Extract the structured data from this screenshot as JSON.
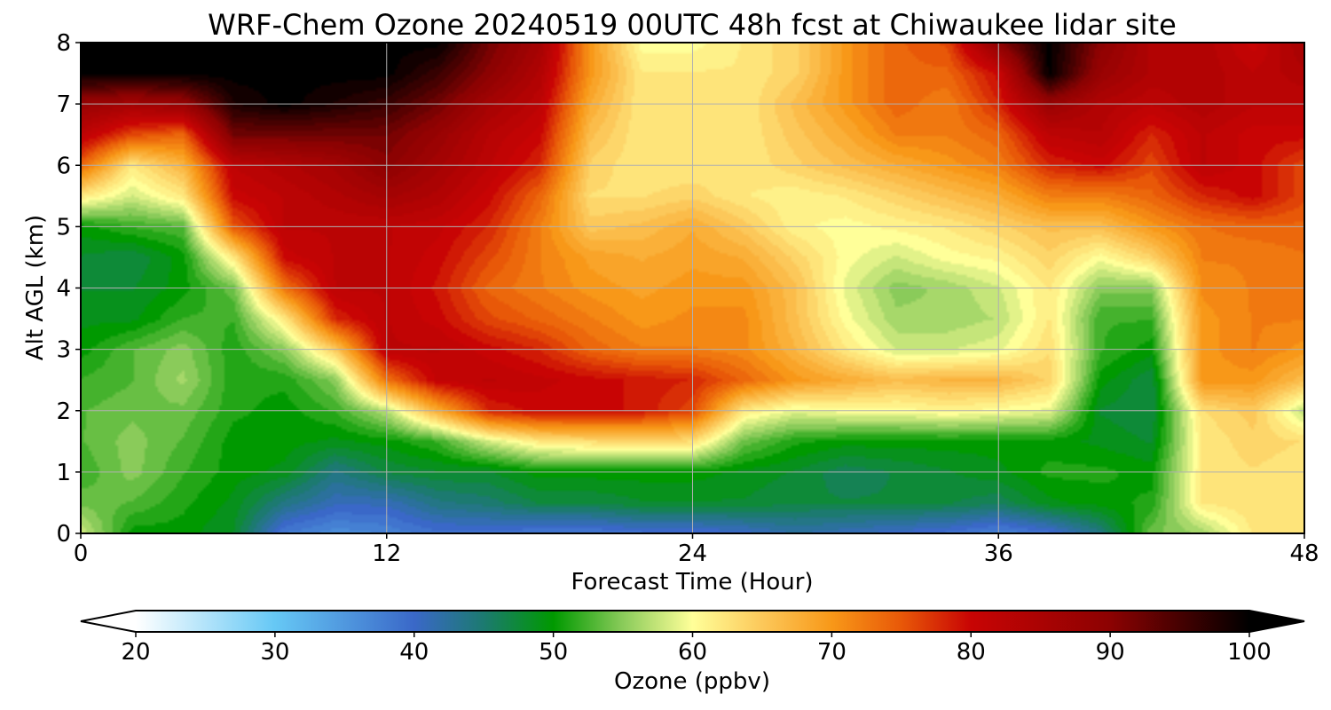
{
  "chart_data": {
    "type": "heatmap",
    "title": "WRF-Chem Ozone  20240519 00UTC 48h fcst at Chiwaukee lidar site",
    "xlabel": "Forecast Time (Hour)",
    "ylabel": "Alt AGL (km)",
    "xlim": [
      0,
      48
    ],
    "ylim": [
      0,
      8
    ],
    "x_ticks": [
      0,
      12,
      24,
      36,
      48
    ],
    "y_ticks": [
      0,
      1,
      2,
      3,
      4,
      5,
      6,
      7,
      8
    ],
    "grid": true,
    "z_label": "Ozone  (ppbv)",
    "colorbar": {
      "label": "Ozone  (ppbv)",
      "range": [
        20,
        100
      ],
      "ticks": [
        20,
        30,
        40,
        50,
        60,
        70,
        80,
        90,
        100
      ],
      "extend": "both",
      "orientation": "horizontal",
      "placement": "bottom",
      "color_stops": [
        {
          "value": 20,
          "color": "#ffffff"
        },
        {
          "value": 30,
          "color": "#66c8f5"
        },
        {
          "value": 40,
          "color": "#3a68c8"
        },
        {
          "value": 45,
          "color": "#1c7a70"
        },
        {
          "value": 50,
          "color": "#009900"
        },
        {
          "value": 55,
          "color": "#8acb5a"
        },
        {
          "value": 60,
          "color": "#ffff99"
        },
        {
          "value": 65,
          "color": "#fcc85a"
        },
        {
          "value": 70,
          "color": "#f89818"
        },
        {
          "value": 75,
          "color": "#e85808"
        },
        {
          "value": 80,
          "color": "#c80404"
        },
        {
          "value": 90,
          "color": "#8c0202"
        },
        {
          "value": 100,
          "color": "#000000"
        }
      ]
    },
    "grid_x": [
      0,
      2,
      4,
      6,
      8,
      10,
      12,
      14,
      16,
      18,
      20,
      22,
      24,
      26,
      28,
      30,
      32,
      34,
      36,
      38,
      40,
      42,
      44,
      46,
      48
    ],
    "grid_y": [
      0,
      0.5,
      1,
      1.5,
      2,
      2.5,
      3,
      3.5,
      4,
      4.5,
      5,
      5.5,
      6,
      6.5,
      7,
      7.5,
      8
    ],
    "ozone_ppbv": [
      [
        58,
        50,
        50,
        48,
        38,
        36,
        37,
        39,
        39,
        38,
        38,
        39,
        39,
        40,
        42,
        41,
        40,
        39,
        37,
        39,
        44,
        54,
        56,
        62,
        62
      ],
      [
        54,
        53,
        51,
        49,
        44,
        41,
        41,
        44,
        45,
        47,
        47,
        48,
        48,
        48,
        47,
        47,
        47,
        47,
        46,
        49,
        50,
        51,
        62,
        63,
        62
      ],
      [
        52,
        55,
        52,
        50,
        49,
        44,
        47,
        48,
        48,
        50,
        50,
        50,
        50,
        49,
        48,
        46,
        47,
        48,
        49,
        51,
        51,
        50,
        62,
        63,
        62
      ],
      [
        53,
        55,
        53,
        50,
        50,
        49,
        50,
        52,
        58,
        62,
        63,
        64,
        63,
        54,
        51,
        50,
        50,
        50,
        50,
        50,
        49,
        48,
        62,
        64,
        63
      ],
      [
        53,
        54,
        54,
        51,
        50,
        52,
        57,
        68,
        78,
        80,
        80,
        79,
        76,
        62,
        59,
        60,
        60,
        61,
        60,
        59,
        48,
        47,
        63,
        65,
        57
      ],
      [
        52,
        53,
        56,
        51,
        51,
        55,
        73,
        81,
        82,
        81,
        80,
        79,
        78,
        74,
        70,
        68,
        66,
        67,
        67,
        64,
        50,
        47,
        70,
        70,
        66
      ],
      [
        50,
        53,
        55,
        51,
        55,
        65,
        82,
        82,
        80,
        78,
        74,
        72,
        72,
        71,
        67,
        62,
        58,
        58,
        59,
        63,
        52,
        50,
        70,
        72,
        70
      ],
      [
        49,
        49,
        52,
        52,
        62,
        78,
        82,
        80,
        76,
        74,
        72,
        70,
        71,
        71,
        66,
        60,
        56,
        56,
        57,
        62,
        52,
        52,
        70,
        72,
        72
      ],
      [
        48,
        48,
        50,
        54,
        73,
        82,
        82,
        79,
        74,
        72,
        70,
        69,
        70,
        70,
        66,
        59,
        55,
        56,
        58,
        62,
        55,
        55,
        71,
        72,
        72
      ],
      [
        48,
        47,
        50,
        62,
        80,
        82,
        82,
        80,
        76,
        72,
        69,
        68,
        69,
        68,
        64,
        60,
        58,
        60,
        61,
        64,
        60,
        64,
        72,
        72,
        73
      ],
      [
        50,
        52,
        53,
        75,
        82,
        82,
        82,
        81,
        78,
        72,
        65,
        66,
        68,
        65,
        61,
        60,
        61,
        62,
        64,
        66,
        66,
        70,
        73,
        74,
        74
      ],
      [
        62,
        58,
        62,
        80,
        82,
        84,
        86,
        84,
        80,
        74,
        63,
        63,
        64,
        62,
        61,
        62,
        64,
        66,
        68,
        72,
        72,
        74,
        78,
        80,
        76
      ],
      [
        74,
        62,
        67,
        82,
        84,
        86,
        90,
        86,
        82,
        78,
        64,
        62,
        62,
        62,
        64,
        66,
        68,
        70,
        72,
        78,
        80,
        76,
        82,
        80,
        76
      ],
      [
        82,
        76,
        74,
        92,
        92,
        92,
        92,
        88,
        83,
        80,
        66,
        62,
        62,
        62,
        65,
        68,
        72,
        72,
        74,
        82,
        83,
        78,
        82,
        80,
        80
      ],
      [
        88,
        86,
        88,
        98,
        100,
        98,
        96,
        92,
        86,
        82,
        68,
        62,
        62,
        62,
        66,
        70,
        74,
        72,
        78,
        88,
        84,
        82,
        84,
        82,
        82
      ],
      [
        100,
        100,
        100,
        100,
        100,
        100,
        100,
        96,
        90,
        84,
        70,
        62,
        62,
        62,
        64,
        70,
        74,
        74,
        80,
        100,
        88,
        84,
        84,
        82,
        84
      ],
      [
        100,
        100,
        100,
        100,
        100,
        100,
        100,
        100,
        92,
        86,
        70,
        60,
        60,
        62,
        64,
        70,
        74,
        76,
        90,
        100,
        90,
        84,
        84,
        80,
        86
      ]
    ]
  }
}
